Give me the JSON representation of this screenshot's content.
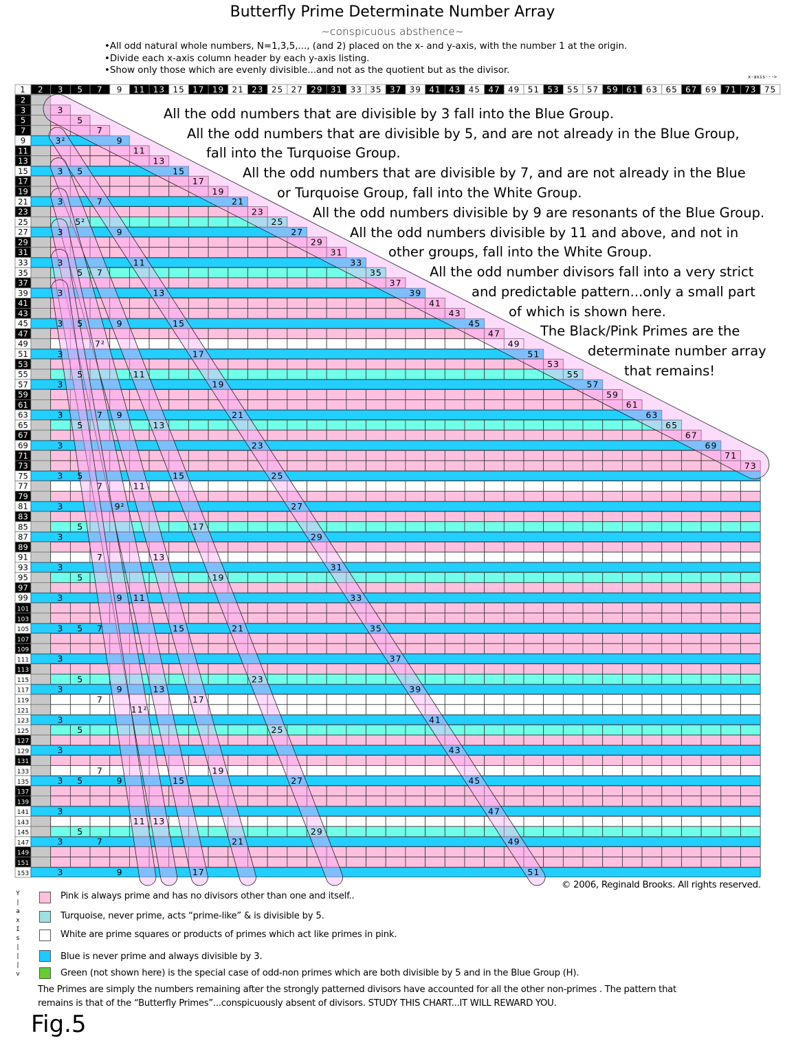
{
  "title": "Butterfly Prime Determinate Number Array",
  "subtitle": "~conspicuous absthence~",
  "bullets": [
    "•All odd natural whole numbers, N=1,3,5,..., (and 2) placed on the x- and y-axis, with the number 1 at the origin.",
    "•Divide each x-axis column header by each y-axis listing.",
    "•Show only those which are evenly divisible...and not as the quotient but as the divisor."
  ],
  "x_axis_label": "x-axis--->",
  "y_axis_label": [
    "Y",
    "|",
    "a",
    "x",
    "I",
    "s",
    "|",
    "|",
    "|",
    "v"
  ],
  "colors": {
    "prime": "#ffc0e0",
    "turquoise": "#70ffe8",
    "white": "#ffffff",
    "blue": "#22cfff",
    "grey": "#c8c8c8",
    "green": "#66cc33",
    "band": "rgba(250,170,245,0.42)"
  },
  "x_headers": [
    "1",
    "2",
    "3",
    "5",
    "7",
    "9",
    "11",
    "13",
    "15",
    "17",
    "19",
    "21",
    "23",
    "25",
    "27",
    "29",
    "31",
    "33",
    "35",
    "37",
    "39",
    "41",
    "43",
    "45",
    "47",
    "49",
    "51",
    "53",
    "55",
    "57",
    "59",
    "61",
    "63",
    "65",
    "67",
    "69",
    "71",
    "73",
    "75"
  ],
  "x_header_primes": [
    "2",
    "3",
    "5",
    "7",
    "11",
    "13",
    "17",
    "19",
    "23",
    "29",
    "31",
    "37",
    "41",
    "43",
    "47",
    "53",
    "59",
    "61",
    "67",
    "71",
    "73"
  ],
  "rows": [
    {
      "n": "2",
      "g": "prime",
      "c": {}
    },
    {
      "n": "3",
      "g": "prime",
      "c": {
        "3": "3"
      }
    },
    {
      "n": "5",
      "g": "prime",
      "c": {
        "5": "5"
      }
    },
    {
      "n": "7",
      "g": "prime",
      "c": {
        "7": "7"
      }
    },
    {
      "n": "9",
      "g": "blue",
      "c": {
        "3": "3²",
        "9": "9"
      }
    },
    {
      "n": "11",
      "g": "prime",
      "c": {
        "11": "11"
      }
    },
    {
      "n": "13",
      "g": "prime",
      "c": {
        "13": "13"
      }
    },
    {
      "n": "15",
      "g": "blue",
      "c": {
        "3": "3",
        "5": "5",
        "15": "15"
      }
    },
    {
      "n": "17",
      "g": "prime",
      "c": {
        "17": "17"
      }
    },
    {
      "n": "19",
      "g": "prime",
      "c": {
        "19": "19"
      }
    },
    {
      "n": "21",
      "g": "blue",
      "c": {
        "3": "3",
        "7": "7",
        "21": "21"
      }
    },
    {
      "n": "23",
      "g": "prime",
      "c": {
        "23": "23"
      }
    },
    {
      "n": "25",
      "g": "turquoise",
      "c": {
        "5": "5²",
        "25": "25"
      }
    },
    {
      "n": "27",
      "g": "blue",
      "c": {
        "3": "3",
        "9": "9",
        "27": "27"
      }
    },
    {
      "n": "29",
      "g": "prime",
      "c": {
        "29": "29"
      }
    },
    {
      "n": "31",
      "g": "prime",
      "c": {
        "31": "31"
      }
    },
    {
      "n": "33",
      "g": "blue",
      "c": {
        "3": "3",
        "11": "11",
        "33": "33"
      }
    },
    {
      "n": "35",
      "g": "turquoise",
      "c": {
        "5": "5",
        "7": "7",
        "35": "35"
      }
    },
    {
      "n": "37",
      "g": "prime",
      "c": {
        "37": "37"
      }
    },
    {
      "n": "39",
      "g": "blue",
      "c": {
        "3": "3",
        "13": "13",
        "39": "39"
      }
    },
    {
      "n": "41",
      "g": "prime",
      "c": {
        "41": "41"
      }
    },
    {
      "n": "43",
      "g": "prime",
      "c": {
        "43": "43"
      }
    },
    {
      "n": "45",
      "g": "blue",
      "c": {
        "3": "3",
        "5": "5",
        "9": "9",
        "15": "15",
        "45": "45"
      }
    },
    {
      "n": "47",
      "g": "prime",
      "c": {
        "47": "47"
      }
    },
    {
      "n": "49",
      "g": "white",
      "c": {
        "7": "7²",
        "49": "49"
      }
    },
    {
      "n": "51",
      "g": "blue",
      "c": {
        "3": "3",
        "17": "17",
        "51": "51"
      }
    },
    {
      "n": "53",
      "g": "prime",
      "c": {
        "53": "53"
      }
    },
    {
      "n": "55",
      "g": "turquoise",
      "c": {
        "5": "5",
        "11": "11",
        "55": "55"
      }
    },
    {
      "n": "57",
      "g": "blue",
      "c": {
        "3": "3",
        "19": "19",
        "57": "57"
      }
    },
    {
      "n": "59",
      "g": "prime",
      "c": {
        "59": "59"
      }
    },
    {
      "n": "61",
      "g": "prime",
      "c": {
        "61": "61"
      }
    },
    {
      "n": "63",
      "g": "blue",
      "c": {
        "3": "3",
        "7": "7",
        "9": "9",
        "21": "21",
        "63": "63"
      }
    },
    {
      "n": "65",
      "g": "turquoise",
      "c": {
        "5": "5",
        "13": "13",
        "65": "65"
      }
    },
    {
      "n": "67",
      "g": "prime",
      "c": {
        "67": "67"
      }
    },
    {
      "n": "69",
      "g": "blue",
      "c": {
        "3": "3",
        "23": "23",
        "69": "69"
      }
    },
    {
      "n": "71",
      "g": "prime",
      "c": {
        "71": "71"
      }
    },
    {
      "n": "73",
      "g": "prime",
      "c": {
        "73": "73"
      }
    },
    {
      "n": "75",
      "g": "blue",
      "c": {
        "3": "3",
        "5": "5",
        "15": "15",
        "25": "25"
      }
    },
    {
      "n": "77",
      "g": "white",
      "c": {
        "7": "7",
        "11": "11"
      }
    },
    {
      "n": "79",
      "g": "prime",
      "c": {}
    },
    {
      "n": "81",
      "g": "blue",
      "c": {
        "3": "3",
        "9": "9²",
        "27": "27"
      }
    },
    {
      "n": "83",
      "g": "prime",
      "c": {}
    },
    {
      "n": "85",
      "g": "turquoise",
      "c": {
        "5": "5",
        "17": "17"
      }
    },
    {
      "n": "87",
      "g": "blue",
      "c": {
        "3": "3",
        "29": "29"
      }
    },
    {
      "n": "89",
      "g": "prime",
      "c": {}
    },
    {
      "n": "91",
      "g": "white",
      "c": {
        "7": "7",
        "13": "13"
      }
    },
    {
      "n": "93",
      "g": "blue",
      "c": {
        "3": "3",
        "31": "31"
      }
    },
    {
      "n": "95",
      "g": "turquoise",
      "c": {
        "5": "5",
        "19": "19"
      }
    },
    {
      "n": "97",
      "g": "prime",
      "c": {}
    },
    {
      "n": "99",
      "g": "blue",
      "c": {
        "3": "3",
        "9": "9",
        "11": "11",
        "33": "33"
      }
    },
    {
      "n": "101",
      "g": "prime",
      "c": {}
    },
    {
      "n": "103",
      "g": "prime",
      "c": {}
    },
    {
      "n": "105",
      "g": "blue",
      "c": {
        "3": "3",
        "5": "5",
        "7": "7",
        "15": "15",
        "21": "21",
        "35": "35"
      }
    },
    {
      "n": "107",
      "g": "prime",
      "c": {}
    },
    {
      "n": "109",
      "g": "prime",
      "c": {}
    },
    {
      "n": "111",
      "g": "blue",
      "c": {
        "3": "3",
        "37": "37"
      }
    },
    {
      "n": "113",
      "g": "prime",
      "c": {}
    },
    {
      "n": "115",
      "g": "turquoise",
      "c": {
        "5": "5",
        "23": "23"
      }
    },
    {
      "n": "117",
      "g": "blue",
      "c": {
        "3": "3",
        "9": "9",
        "13": "13",
        "39": "39"
      }
    },
    {
      "n": "119",
      "g": "white",
      "c": {
        "7": "7",
        "17": "17"
      }
    },
    {
      "n": "121",
      "g": "white",
      "c": {
        "11": "11²"
      }
    },
    {
      "n": "123",
      "g": "blue",
      "c": {
        "3": "3",
        "41": "41"
      }
    },
    {
      "n": "125",
      "g": "turquoise",
      "c": {
        "5": "5",
        "25": "25"
      }
    },
    {
      "n": "127",
      "g": "prime",
      "c": {}
    },
    {
      "n": "129",
      "g": "blue",
      "c": {
        "3": "3",
        "43": "43"
      }
    },
    {
      "n": "131",
      "g": "prime",
      "c": {}
    },
    {
      "n": "133",
      "g": "white",
      "c": {
        "7": "7",
        "19": "19"
      }
    },
    {
      "n": "135",
      "g": "blue",
      "c": {
        "3": "3",
        "5": "5",
        "9": "9",
        "15": "15",
        "27": "27",
        "45": "45"
      }
    },
    {
      "n": "137",
      "g": "prime",
      "c": {}
    },
    {
      "n": "139",
      "g": "prime",
      "c": {}
    },
    {
      "n": "141",
      "g": "blue",
      "c": {
        "3": "3",
        "47": "47"
      }
    },
    {
      "n": "143",
      "g": "white",
      "c": {
        "11": "11",
        "13": "13"
      }
    },
    {
      "n": "145",
      "g": "turquoise",
      "c": {
        "5": "5",
        "29": "29"
      }
    },
    {
      "n": "147",
      "g": "blue",
      "c": {
        "3": "3",
        "7": "7",
        "21": "21",
        "49": "49"
      }
    },
    {
      "n": "149",
      "g": "prime",
      "c": {}
    },
    {
      "n": "151",
      "g": "prime",
      "c": {}
    },
    {
      "n": "153",
      "g": "blue",
      "c": {
        "3": "3",
        "9": "9",
        "17": "17",
        "51": "51"
      }
    }
  ],
  "bands_quotient_divisors": [
    1,
    3,
    5,
    7,
    9,
    11,
    13
  ],
  "notes": [
    "All the odd numbers that are divisible by 3 fall into the Blue Group.",
    "All the odd numbers that are divisible by 5, and are not already in the Blue Group,",
    "fall into the Turquoise Group.",
    "All the odd numbers that are divisible by 7, and are not already in the Blue",
    "or Turquoise Group,  fall into the White Group.",
    "All the odd numbers divisible by 9 are resonants of the Blue Group.",
    "All the odd numbers divisible by 11 and above, and not in",
    "other groups, fall into the White Group.",
    "All the odd number divisors fall into a very strict",
    "and predictable pattern...only a small part",
    "of which is shown here.",
    "The Black/Pink Primes are the",
    "determinate number array",
    "that remains!"
  ],
  "copyright": "© 2006, Reginald Brooks. All rights reserved.",
  "legend": [
    {
      "color": "#ffc0e0",
      "text": "Pink  is always prime and has no divisors other than one and itself.."
    },
    {
      "color": "#a0e0e0",
      "text": "Turquoise, never prime, acts “prime-like”  &  is divisible by 5."
    },
    {
      "color": "#ffffff",
      "text": "White  are prime squares or products of primes which act like primes in pink."
    },
    {
      "color": "#22c8ff",
      "text": "Blue is never prime  and  always divisible by 3."
    },
    {
      "color": "#66cc33",
      "text": "Green (not shown here) is the special case of odd-non primes which are both divisible by 5 and in the Blue Group (H)."
    }
  ],
  "paragraph": [
    "The Primes are simply the numbers remaining after the strongly patterned divisors have accounted for all the other non-primes . The pattern that",
    "remains is that of the “Butterfly Primes”...conspicuously absent of divisors. STUDY THIS CHART...IT WILL REWARD YOU."
  ],
  "figure_label": "Fig.5"
}
